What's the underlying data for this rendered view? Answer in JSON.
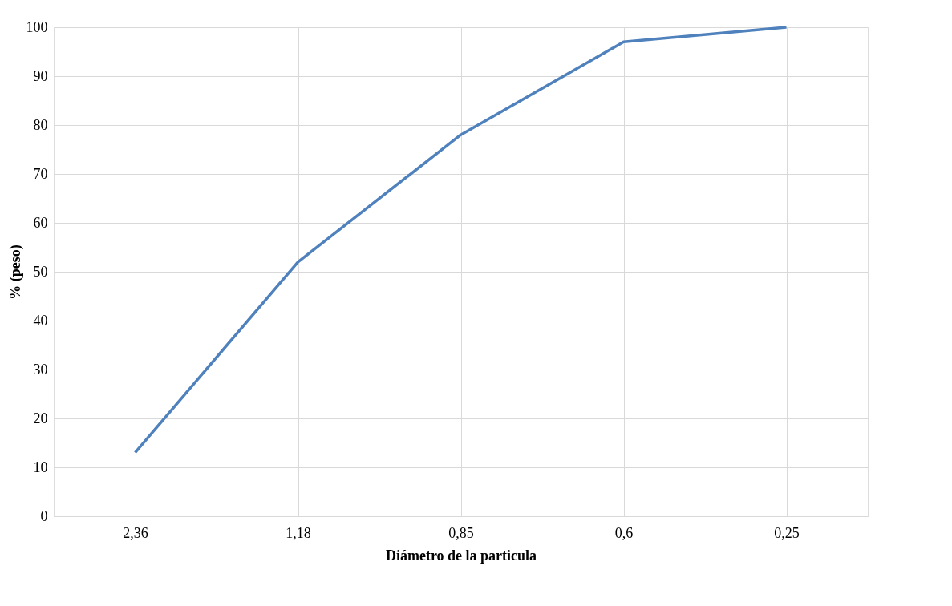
{
  "chart_data": {
    "type": "line",
    "xlabel": "Diámetro de la particula",
    "ylabel": "% (peso)",
    "categories": [
      "2,36",
      "1,18",
      "0,85",
      "0,6",
      "0,25"
    ],
    "series": [
      {
        "color": "#4f81bd",
        "values": [
          13,
          52,
          78,
          97,
          100
        ]
      }
    ],
    "ylim": [
      0,
      100
    ],
    "yticks": [
      0,
      10,
      20,
      30,
      40,
      50,
      60,
      70,
      80,
      90,
      100
    ],
    "grid": true,
    "marker": "none",
    "line_style": "solid",
    "legend": false
  }
}
